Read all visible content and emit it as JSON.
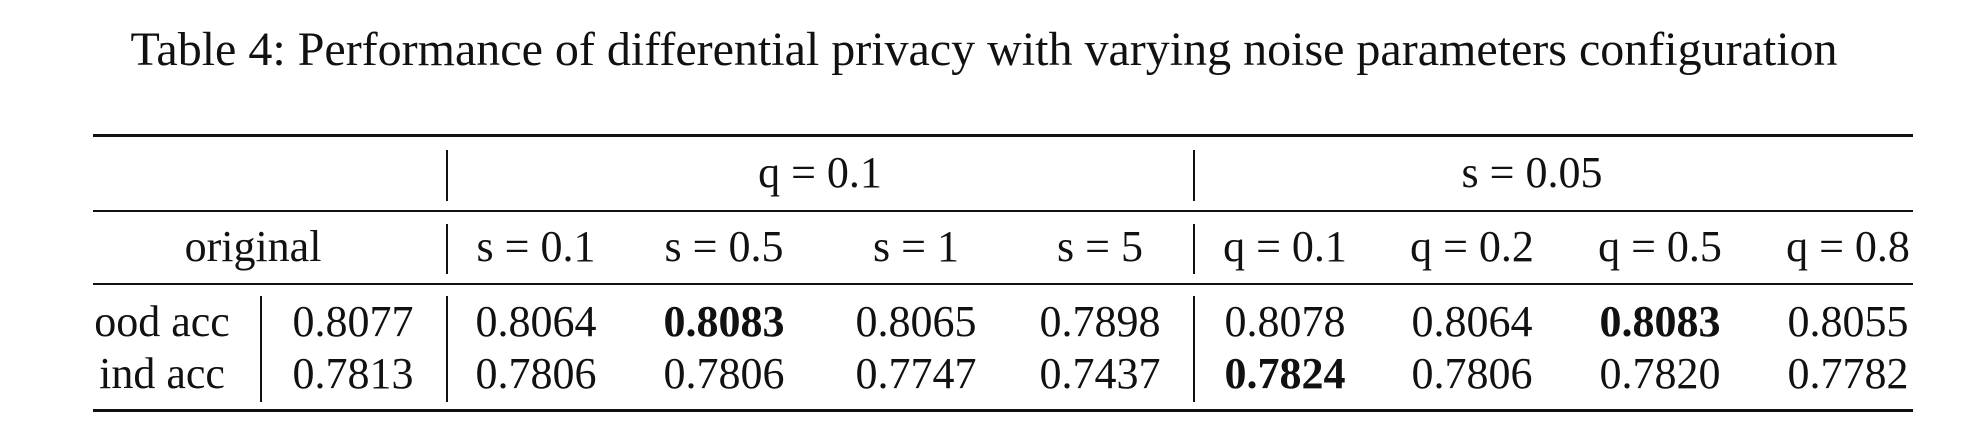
{
  "caption": "Table 4: Performance of differential privacy with varying noise parameters configuration",
  "table": {
    "group_headers": [
      "q = 0.1",
      "s = 0.05"
    ],
    "sub_headers": {
      "original": "original",
      "q_group": [
        "s = 0.1",
        "s = 0.5",
        "s = 1",
        "s = 5"
      ],
      "s_group": [
        "q = 0.1",
        "q = 0.2",
        "q = 0.5",
        "q = 0.8"
      ]
    },
    "rows": [
      {
        "label": "ood acc",
        "original": "0.8077",
        "values": [
          "0.8064",
          "0.8083",
          "0.8065",
          "0.7898",
          "0.8078",
          "0.8064",
          "0.8083",
          "0.8055"
        ],
        "bold": [
          false,
          true,
          false,
          false,
          false,
          false,
          true,
          false
        ]
      },
      {
        "label": "ind acc",
        "original": "0.7813",
        "values": [
          "0.7806",
          "0.7806",
          "0.7747",
          "0.7437",
          "0.7824",
          "0.7806",
          "0.7820",
          "0.7782"
        ],
        "bold": [
          false,
          false,
          false,
          false,
          true,
          false,
          false,
          false
        ]
      }
    ]
  }
}
